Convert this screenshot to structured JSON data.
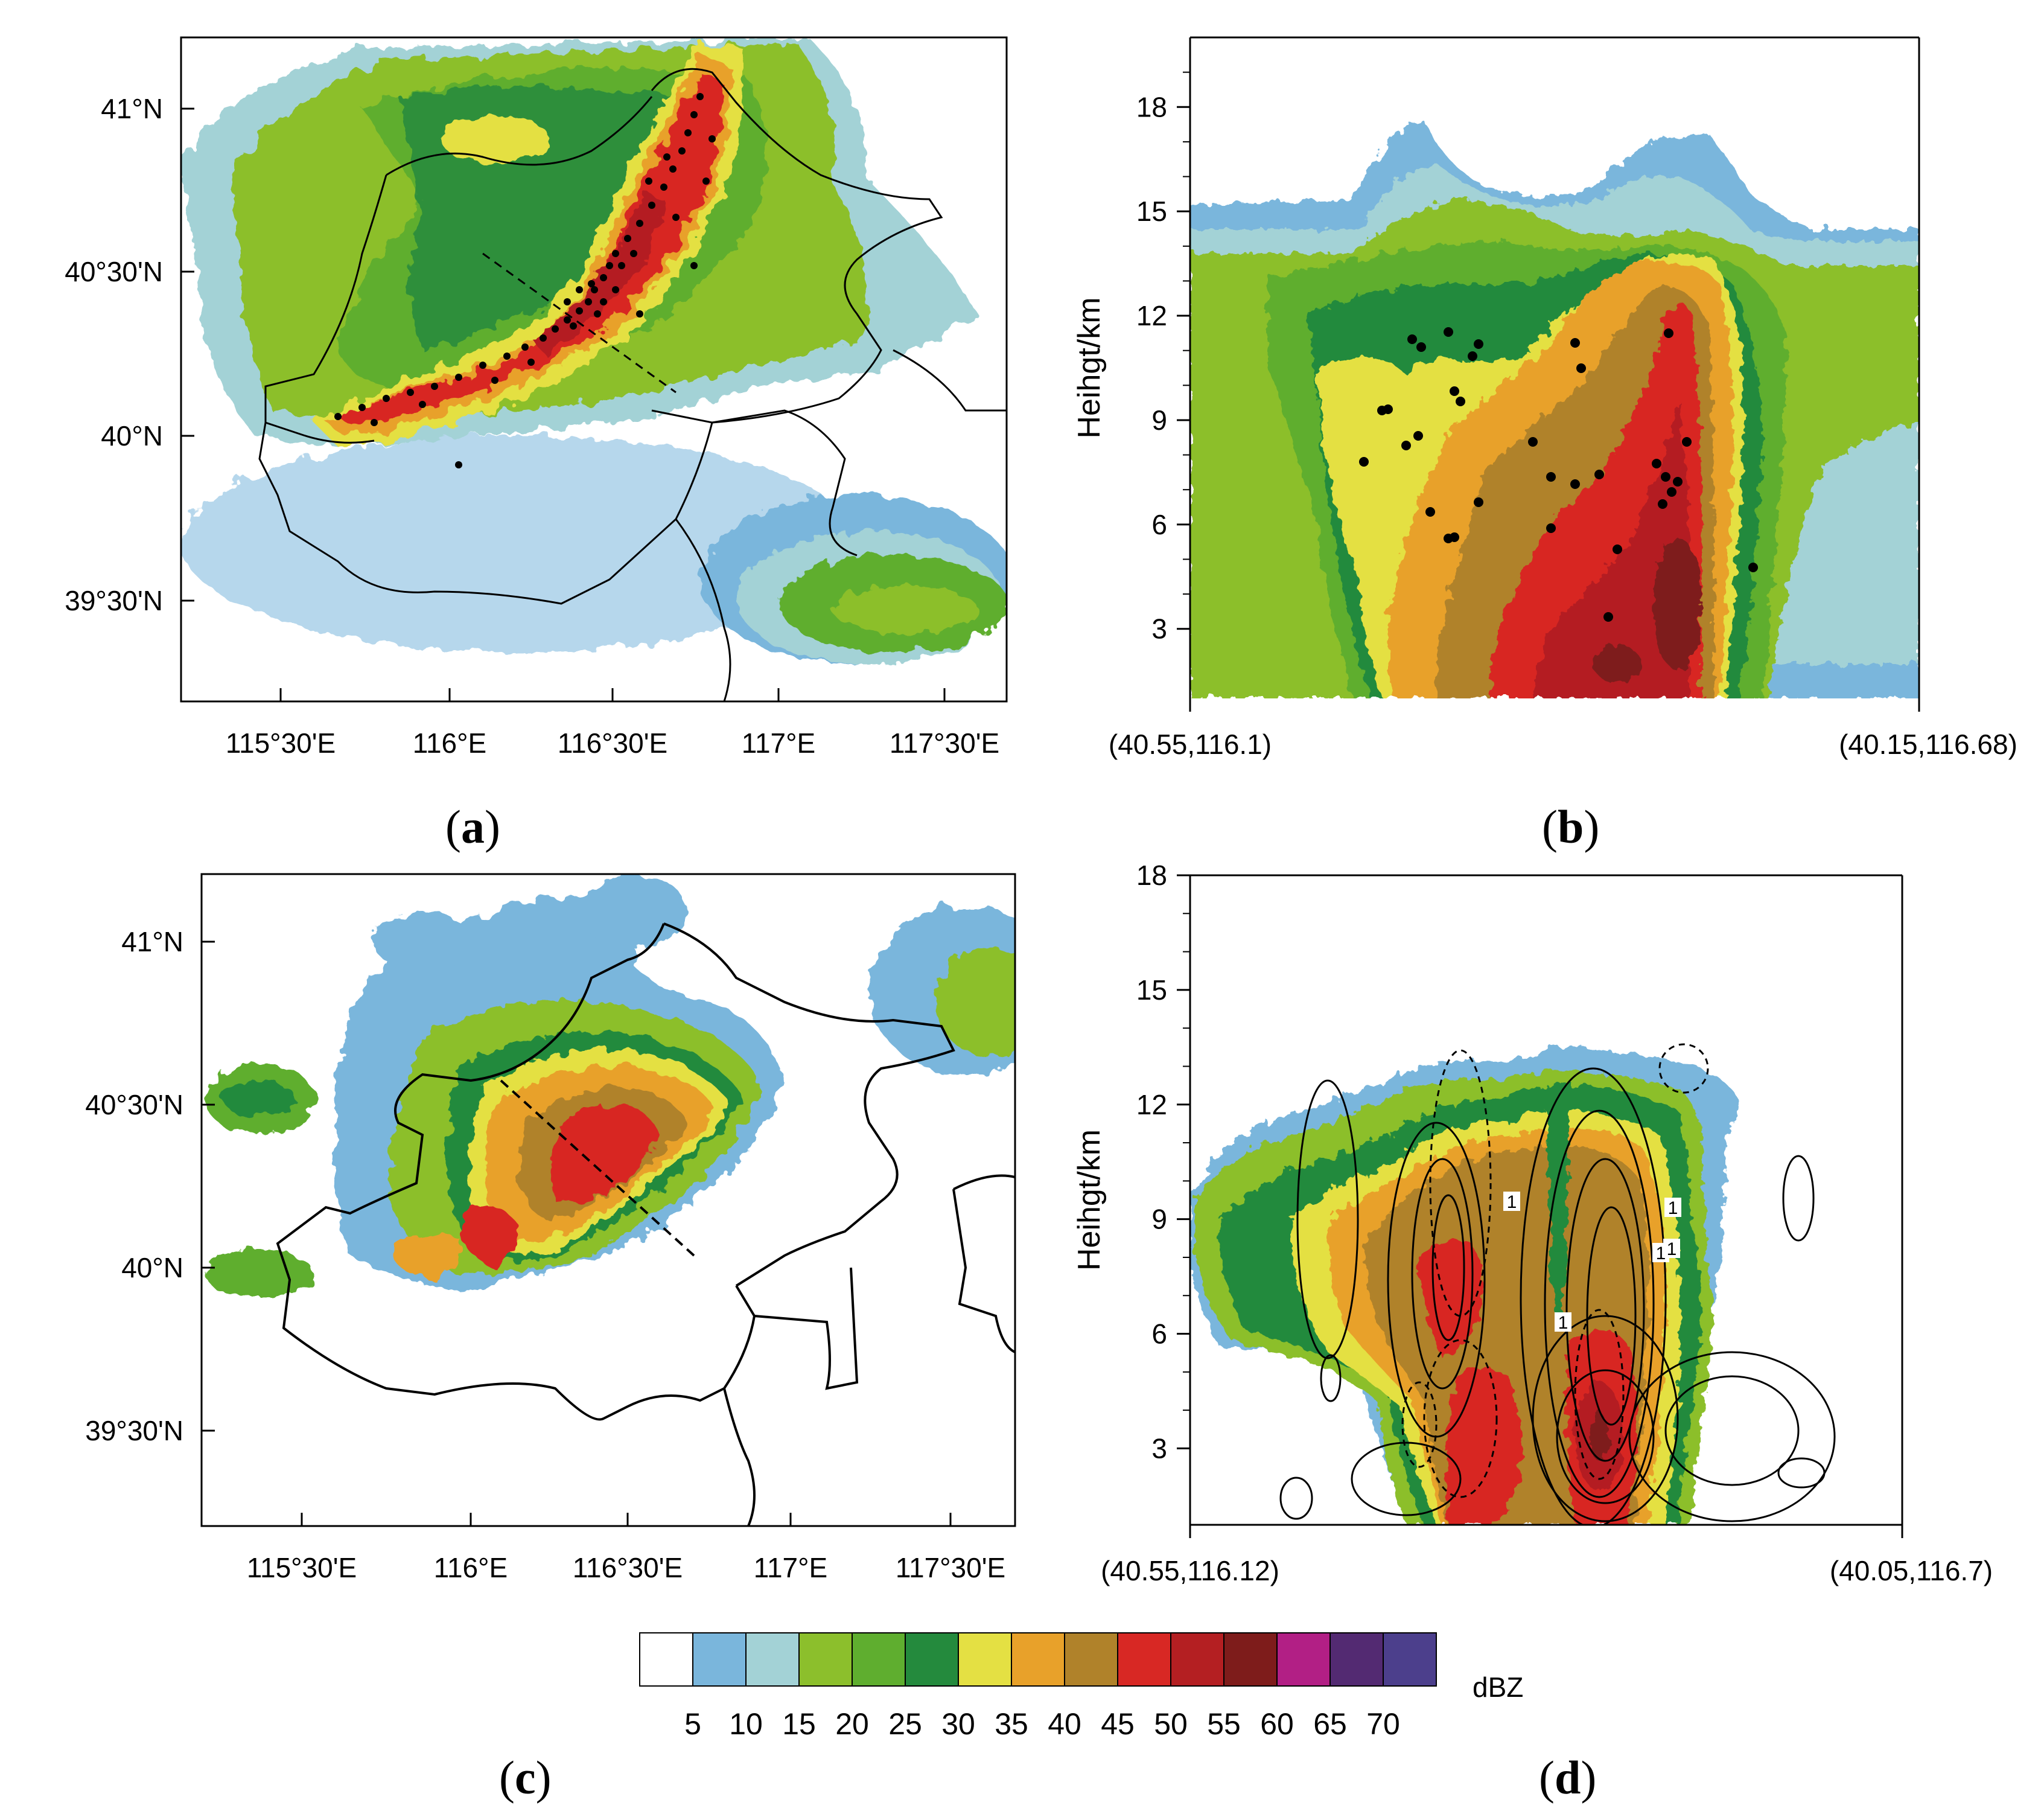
{
  "panels": [
    {
      "id": "a",
      "caption_letter": "a",
      "kind": "map",
      "x_ticks": [
        "115°30'E",
        "116°E",
        "116°30'E",
        "117°E",
        "117°30'E"
      ],
      "y_ticks": [
        "41°N",
        "40°30'N",
        "40°N",
        "39°30'N"
      ]
    },
    {
      "id": "b",
      "caption_letter": "b",
      "kind": "section",
      "ylabel": "Heihgt/km",
      "y_ticks": [
        "3",
        "6",
        "9",
        "12",
        "15",
        "18"
      ],
      "left_label": "(40.55,116.1)",
      "right_label": "(40.15,116.68)"
    },
    {
      "id": "c",
      "caption_letter": "c",
      "kind": "map",
      "x_ticks": [
        "115°30'E",
        "116°E",
        "116°30'E",
        "117°E",
        "117°30'E"
      ],
      "y_ticks": [
        "41°N",
        "40°30'N",
        "40°N",
        "39°30'N"
      ]
    },
    {
      "id": "d",
      "caption_letter": "d",
      "kind": "section",
      "ylabel": "Heihgt/km",
      "y_ticks": [
        "3",
        "6",
        "9",
        "12",
        "15",
        "18"
      ],
      "left_label": "(40.55,116.12)",
      "right_label": "(40.05,116.7)",
      "contour_labels": [
        "1",
        "1",
        "1",
        "1",
        "1"
      ]
    }
  ],
  "colorbar": {
    "unit": "dBZ",
    "labels": [
      "5",
      "10",
      "15",
      "20",
      "25",
      "30",
      "35",
      "40",
      "45",
      "50",
      "55",
      "60",
      "65",
      "70"
    ],
    "colors": [
      "#ffffff",
      "#7ab6dc",
      "#a3d2d6",
      "#8cbf2c",
      "#5fae2f",
      "#248a3d",
      "#e4e043",
      "#e8a12a",
      "#b0822a",
      "#d82824",
      "#b41f22",
      "#7e1c1b",
      "#b21f85",
      "#532a72",
      "#4c3f8c"
    ]
  },
  "chart_data": [
    {
      "type": "heatmap",
      "panel": "a",
      "title": "",
      "xlabel": "",
      "ylabel": "",
      "xlim": [
        "115°15'E",
        "117°45'E"
      ],
      "ylim": [
        "39°15'N",
        "41°12'N"
      ],
      "field": "radar reflectivity (dBZ)",
      "features": "SW–NE oriented convective band with maximum reflectivity 50–55 dBZ near 116°30'E, 40°20'N; black dots mark lightning locations concentrated along the band; dashed line marks the cross-section path"
    },
    {
      "type": "heatmap",
      "panel": "b",
      "title": "",
      "xlabel": "",
      "ylabel": "Heihgt/km",
      "ylim": [
        1,
        20
      ],
      "field": "reflectivity cross-section (dBZ) with lightning dots",
      "features": "echo tops reach ~17 km; core ≥55 dBZ between 2–6 km; 45–50 dBZ up to ~12 km"
    },
    {
      "type": "heatmap",
      "panel": "c",
      "title": "",
      "xlabel": "",
      "ylabel": "",
      "xlim": [
        "115°15'E",
        "117°45'E"
      ],
      "ylim": [
        "39°15'N",
        "41°12'N"
      ],
      "field": "simulated reflectivity (dBZ)",
      "features": "convective system centered near 116°30'E, 40°20'N with 50–55 dBZ core; dashed line marks cross-section"
    },
    {
      "type": "heatmap",
      "panel": "d",
      "title": "",
      "xlabel": "",
      "ylabel": "Heihgt/km",
      "ylim": [
        1,
        18
      ],
      "field": "simulated reflectivity cross-section (dBZ) with contour overlay",
      "features": "echo top ~13.5 km; core ≥55 dBZ near 3–5 km; solid and dashed contours labelled 1"
    }
  ]
}
